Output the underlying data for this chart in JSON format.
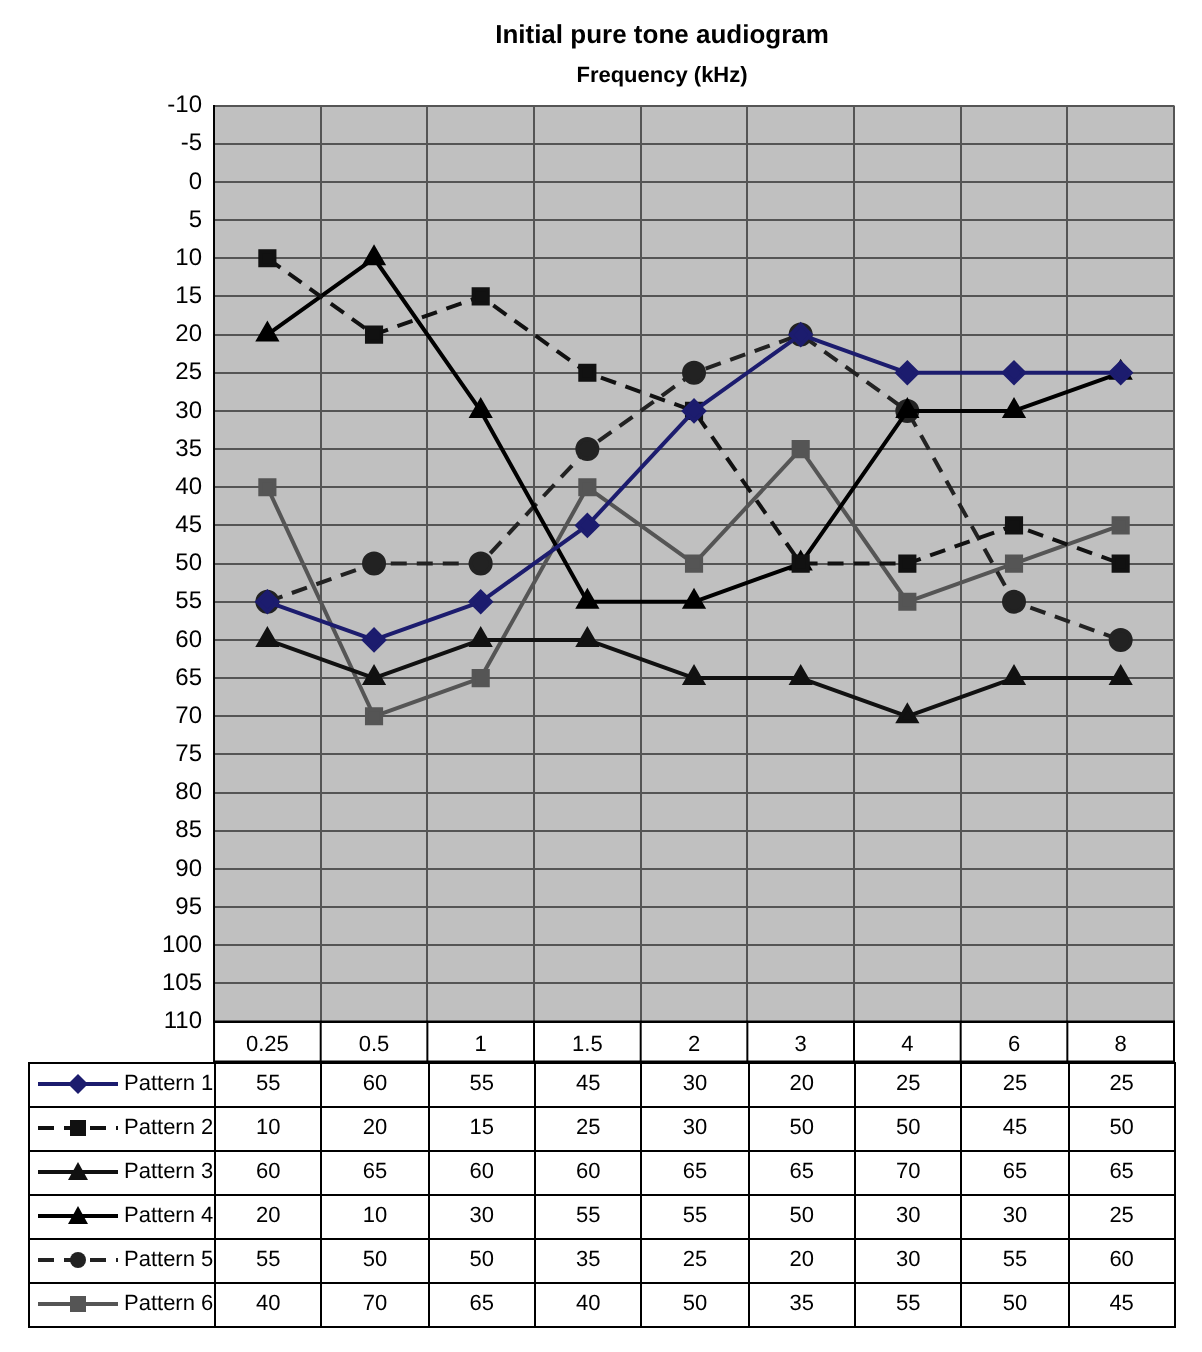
{
  "chart_data": {
    "type": "line",
    "title": "Initial pure tone audiogram",
    "xlabel": "Frequency (kHz)",
    "categories": [
      "0.25",
      "0.5",
      "1",
      "1.5",
      "2",
      "3",
      "4",
      "6",
      "8"
    ],
    "ylim": [
      110,
      -10
    ],
    "yticks": [
      -10,
      -5,
      0,
      5,
      10,
      15,
      20,
      25,
      30,
      35,
      40,
      45,
      50,
      55,
      60,
      65,
      70,
      75,
      80,
      85,
      90,
      95,
      100,
      105,
      110
    ],
    "grid": true,
    "legend": "bottom left",
    "data_labels": true,
    "line_style": "solid",
    "series": [
      {
        "name": "Pattern 1",
        "color": "#1c1c6e",
        "marker": "diamond",
        "values": [
          55,
          60,
          55,
          45,
          30,
          20,
          25,
          25,
          25
        ]
      },
      {
        "name": "Pattern 2",
        "color": "#111111",
        "marker": "square",
        "line_style": "dashed",
        "values": [
          10,
          20,
          15,
          25,
          30,
          50,
          50,
          45,
          50
        ]
      },
      {
        "name": "Pattern 3",
        "color": "#111111",
        "marker": "triangle",
        "values": [
          60,
          65,
          60,
          60,
          65,
          65,
          70,
          65,
          65
        ]
      },
      {
        "name": "Pattern 4",
        "color": "#000000",
        "marker": "triangle",
        "values": [
          20,
          10,
          30,
          55,
          55,
          50,
          30,
          30,
          25
        ]
      },
      {
        "name": "Pattern 5",
        "color": "#222222",
        "marker": "circle",
        "line_style": "dashed",
        "values": [
          55,
          50,
          50,
          35,
          25,
          20,
          30,
          55,
          60
        ]
      },
      {
        "name": "Pattern 6",
        "color": "#555555",
        "marker": "square",
        "values": [
          40,
          70,
          65,
          40,
          50,
          35,
          55,
          50,
          45
        ]
      }
    ]
  }
}
